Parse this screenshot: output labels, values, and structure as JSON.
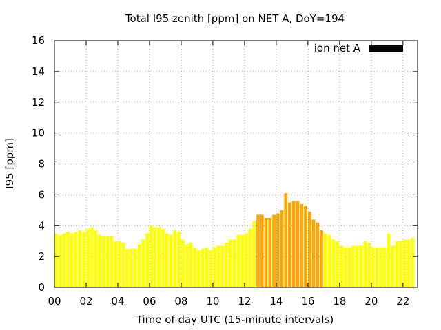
{
  "chart_data": {
    "type": "bar",
    "title": "Total I95 zenith [ppm] on NET A, DoY=194",
    "xlabel": "Time of day UTC (15-minute intervals)",
    "ylabel": "I95 [ppm]",
    "ylim": [
      0,
      16
    ],
    "xlim": [
      0,
      22.92
    ],
    "y_ticks": [
      "0",
      "2",
      "4",
      "6",
      "8",
      "10",
      "12",
      "14",
      "16"
    ],
    "x_ticks": [
      "00",
      "02",
      "04",
      "06",
      "08",
      "10",
      "12",
      "14",
      "16",
      "18",
      "20",
      "22"
    ],
    "grid": true,
    "legend": {
      "position": "top-right",
      "entries": [
        {
          "label": "ion net A",
          "color": "#000000"
        }
      ]
    },
    "colors": {
      "normal": "#ffff00",
      "elevated": "#ffa500",
      "axis": "#000000",
      "grid": "#a0a0a0"
    },
    "bar_interval_hours": 0.25,
    "values": [
      3.5,
      3.4,
      3.5,
      3.6,
      3.5,
      3.6,
      3.7,
      3.6,
      3.8,
      3.9,
      3.7,
      3.4,
      3.3,
      3.3,
      3.3,
      3.0,
      3.0,
      2.9,
      2.5,
      2.5,
      2.5,
      2.8,
      3.1,
      3.5,
      4.0,
      3.9,
      3.9,
      3.8,
      3.5,
      3.4,
      3.7,
      3.6,
      3.1,
      2.8,
      2.9,
      2.6,
      2.4,
      2.5,
      2.6,
      2.4,
      2.6,
      2.7,
      2.7,
      2.9,
      3.1,
      3.1,
      3.4,
      3.4,
      3.5,
      3.8,
      4.3,
      4.7,
      4.7,
      4.5,
      4.5,
      4.7,
      4.8,
      5.0,
      6.1,
      5.5,
      5.6,
      5.6,
      5.4,
      5.3,
      4.9,
      4.4,
      4.2,
      3.7,
      3.5,
      3.4,
      3.1,
      3.0,
      2.7,
      2.6,
      2.6,
      2.7,
      2.7,
      2.7,
      3.0,
      2.9,
      2.6,
      2.6,
      2.6,
      2.6,
      3.5,
      2.7,
      3.0,
      3.0,
      3.1,
      3.1,
      3.2
    ],
    "elevated_range": [
      51,
      67
    ]
  }
}
